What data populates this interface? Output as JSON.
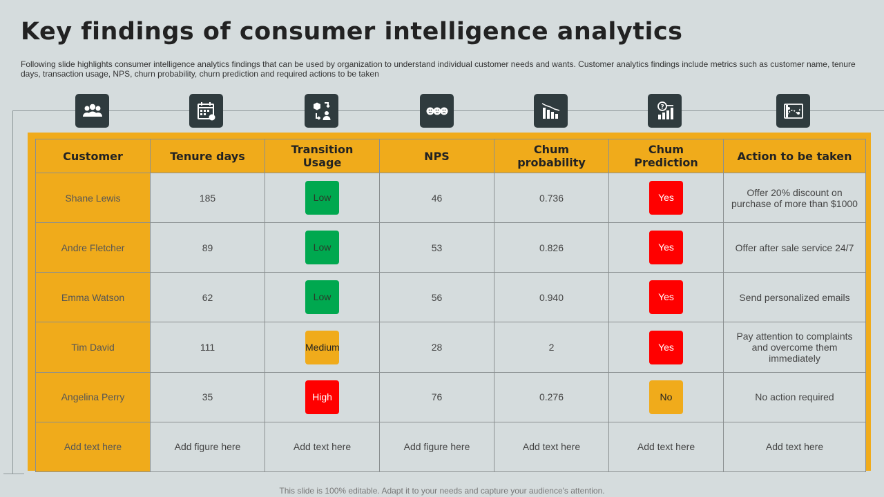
{
  "page": {
    "title": "Key findings of consumer intelligence analytics",
    "subtitle": "Following slide highlights consumer intelligence analytics findings that can be used by organization to understand individual customer needs and wants. Customer analytics findings include metrics such as customer name, tenure days, transaction usage, NPS, churn probability, churn prediction and required actions to be taken",
    "footer": "This slide is 100% editable. Adapt it to your needs and capture your audience's attention."
  },
  "icons": [
    "users-icon",
    "calendar-icon",
    "transaction-flow-icon",
    "nps-faces-icon",
    "declining-chart-icon",
    "churn-question-chart-icon",
    "action-map-icon"
  ],
  "table": {
    "headers": [
      "Customer",
      "Tenure days",
      "Transition Usage",
      "NPS",
      "Chum probability",
      "Chum Prediction",
      "Action to be taken"
    ],
    "rows": [
      {
        "customer": "Shane Lewis",
        "tenure": "185",
        "usage": "Low",
        "nps": "46",
        "probability": "0.736",
        "prediction": "Yes",
        "action": "Offer 20% discount on purchase of more than $1000"
      },
      {
        "customer": "Andre Fletcher",
        "tenure": "89",
        "usage": "Low",
        "nps": "53",
        "probability": "0.826",
        "prediction": "Yes",
        "action": "Offer after sale service 24/7"
      },
      {
        "customer": "Emma Watson",
        "tenure": "62",
        "usage": "Low",
        "nps": "56",
        "probability": "0.940",
        "prediction": "Yes",
        "action": "Send personalized emails"
      },
      {
        "customer": "Tim David",
        "tenure": "111",
        "usage": "Medium",
        "nps": "28",
        "probability": "2",
        "prediction": "Yes",
        "action": "Pay attention to complaints and overcome them immediately"
      },
      {
        "customer": "Angelina Perry",
        "tenure": "35",
        "usage": "High",
        "nps": "76",
        "probability": "0.276",
        "prediction": "No",
        "action": "No action required"
      },
      {
        "customer": "Add text here",
        "tenure": "Add figure here",
        "usage": "Add text here",
        "nps": "Add figure here",
        "probability": "Add text here",
        "prediction": "Add text here",
        "action": "Add text here"
      }
    ]
  },
  "colors": {
    "background": "#d5dcdd",
    "accent": "#f0ab1b",
    "icon_box": "#2f3b3e",
    "low": "#00a84f",
    "high": "#ff0000"
  }
}
